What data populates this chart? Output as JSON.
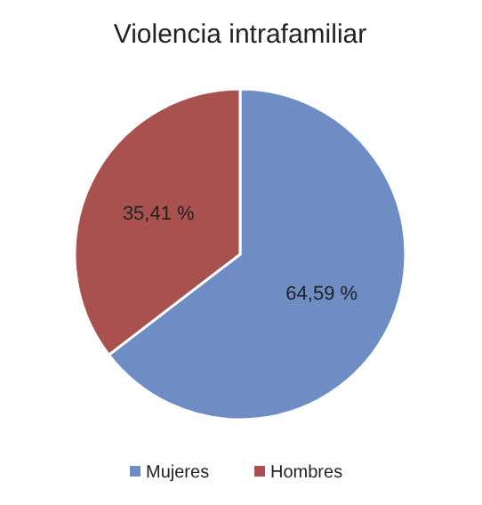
{
  "chart_data": {
    "type": "pie",
    "title": "Violencia intrafamiliar",
    "categories": [
      "Mujeres",
      "Hombres"
    ],
    "values": [
      64.59,
      35.41
    ],
    "colors": [
      "#6d8dc4",
      "#a8514f"
    ],
    "value_labels": [
      "64,59 %",
      "35,41 %"
    ],
    "legend": "bottom"
  }
}
